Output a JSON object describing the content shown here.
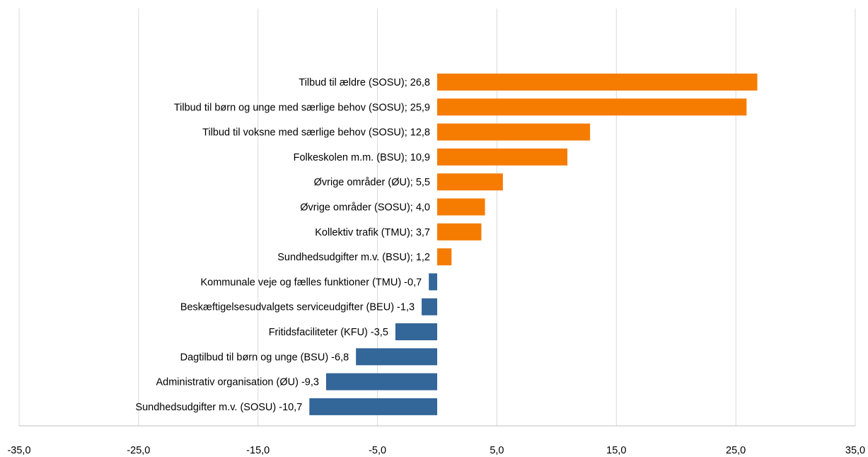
{
  "chart_data": {
    "type": "bar",
    "orientation": "horizontal",
    "xlim": [
      -35,
      35
    ],
    "x_ticks": [
      "-35,0",
      "-25,0",
      "-15,0",
      "-5,0",
      "5,0",
      "15,0",
      "25,0",
      "35,0"
    ],
    "x_tick_values": [
      -35,
      -25,
      -15,
      -5,
      5,
      15,
      25,
      35
    ],
    "grid": true,
    "colors": {
      "positive": "#F57C00",
      "negative": "#336699"
    },
    "bars": [
      {
        "label": "Tilbud til ældre (SOSU); 26,8",
        "value": 26.8
      },
      {
        "label": "Tilbud til børn og unge med særlige behov (SOSU); 25,9",
        "value": 25.9
      },
      {
        "label": "Tilbud til voksne med særlige behov (SOSU); 12,8",
        "value": 12.8
      },
      {
        "label": "Folkeskolen m.m. (BSU); 10,9",
        "value": 10.9
      },
      {
        "label": "Øvrige områder (ØU); 5,5",
        "value": 5.5
      },
      {
        "label": "Øvrige områder (SOSU); 4,0",
        "value": 4.0
      },
      {
        "label": "Kollektiv trafik (TMU); 3,7",
        "value": 3.7
      },
      {
        "label": "Sundhedsudgifter m.v. (BSU); 1,2",
        "value": 1.2
      },
      {
        "label": "Kommunale veje og fælles funktioner (TMU) -0,7",
        "value": -0.7
      },
      {
        "label": "Beskæftigelsesudvalgets serviceudgifter (BEU) -1,3",
        "value": -1.3
      },
      {
        "label": "Fritidsfaciliteter (KFU) -3,5",
        "value": -3.5
      },
      {
        "label": "Dagtilbud til børn og unge (BSU) -6,8",
        "value": -6.8
      },
      {
        "label": "Administrativ organisation (ØU) -9,3",
        "value": -9.3
      },
      {
        "label": "Sundhedsudgifter m.v. (SOSU) -10,7",
        "value": -10.7
      }
    ]
  }
}
